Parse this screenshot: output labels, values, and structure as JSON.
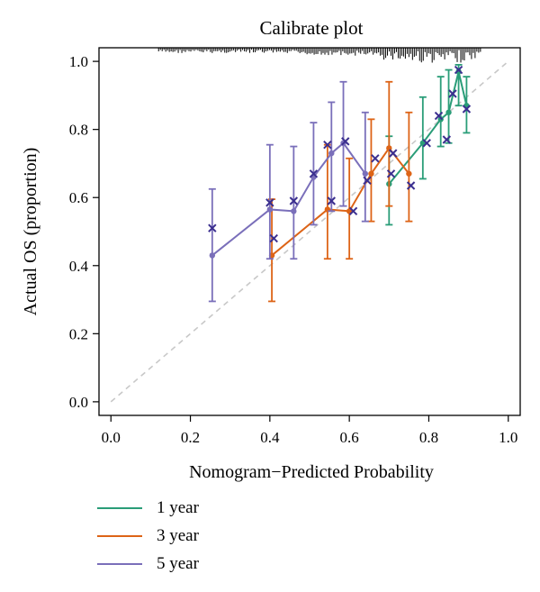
{
  "chart_data": {
    "type": "scatter",
    "title": "Calibrate plot",
    "xlabel": "Nomogram−Predicted Probability",
    "ylabel": "Actual OS (proportion)",
    "xlim": [
      -0.03,
      1.03
    ],
    "ylim": [
      -0.04,
      1.04
    ],
    "x_ticks": [
      "0.0",
      "0.2",
      "0.4",
      "0.6",
      "0.8",
      "1.0"
    ],
    "y_ticks": [
      "0.0",
      "0.2",
      "0.4",
      "0.6",
      "0.8",
      "1.0"
    ],
    "reference_line": {
      "from": [
        0,
        0
      ],
      "to": [
        1,
        1
      ],
      "style": "dashed",
      "color": "#c8c8c8"
    },
    "rug_marks": "dense tick marks along top edge near x 0.3-0.92",
    "series": [
      {
        "name": "1 year",
        "color": "#2a9d78",
        "points": [
          {
            "x": 0.7,
            "y": 0.64,
            "lo": 0.52,
            "hi": 0.78
          },
          {
            "x": 0.785,
            "y": 0.76,
            "lo": 0.655,
            "hi": 0.895
          },
          {
            "x": 0.83,
            "y": 0.83,
            "lo": 0.75,
            "hi": 0.955
          },
          {
            "x": 0.85,
            "y": 0.85,
            "lo": 0.76,
            "hi": 0.975
          },
          {
            "x": 0.875,
            "y": 0.97,
            "lo": 0.87,
            "hi": 0.99
          },
          {
            "x": 0.895,
            "y": 0.87,
            "lo": 0.79,
            "hi": 0.955
          }
        ]
      },
      {
        "name": "3 year",
        "color": "#dd6417",
        "points": [
          {
            "x": 0.405,
            "y": 0.43,
            "lo": 0.295,
            "hi": 0.595
          },
          {
            "x": 0.545,
            "y": 0.565,
            "lo": 0.42,
            "hi": 0.755
          },
          {
            "x": 0.6,
            "y": 0.56,
            "lo": 0.42,
            "hi": 0.715
          },
          {
            "x": 0.655,
            "y": 0.67,
            "lo": 0.53,
            "hi": 0.83
          },
          {
            "x": 0.7,
            "y": 0.745,
            "lo": 0.575,
            "hi": 0.94
          },
          {
            "x": 0.75,
            "y": 0.67,
            "lo": 0.53,
            "hi": 0.85
          }
        ]
      },
      {
        "name": "5 year",
        "color": "#7a6fba",
        "points": [
          {
            "x": 0.255,
            "y": 0.43,
            "lo": 0.295,
            "hi": 0.625
          },
          {
            "x": 0.4,
            "y": 0.565,
            "lo": 0.42,
            "hi": 0.755
          },
          {
            "x": 0.46,
            "y": 0.56,
            "lo": 0.42,
            "hi": 0.75
          },
          {
            "x": 0.51,
            "y": 0.66,
            "lo": 0.52,
            "hi": 0.82
          },
          {
            "x": 0.555,
            "y": 0.73,
            "lo": 0.56,
            "hi": 0.88
          },
          {
            "x": 0.585,
            "y": 0.76,
            "lo": 0.575,
            "hi": 0.94
          },
          {
            "x": 0.64,
            "y": 0.67,
            "lo": 0.53,
            "hi": 0.85
          }
        ]
      }
    ],
    "cross_markers": {
      "color": "#3b2f8f",
      "points": [
        [
          0.255,
          0.51
        ],
        [
          0.4,
          0.585
        ],
        [
          0.41,
          0.48
        ],
        [
          0.46,
          0.59
        ],
        [
          0.51,
          0.67
        ],
        [
          0.545,
          0.755
        ],
        [
          0.555,
          0.59
        ],
        [
          0.59,
          0.765
        ],
        [
          0.61,
          0.56
        ],
        [
          0.645,
          0.65
        ],
        [
          0.665,
          0.715
        ],
        [
          0.705,
          0.67
        ],
        [
          0.71,
          0.73
        ],
        [
          0.755,
          0.635
        ],
        [
          0.795,
          0.76
        ],
        [
          0.825,
          0.84
        ],
        [
          0.845,
          0.77
        ],
        [
          0.86,
          0.905
        ],
        [
          0.875,
          0.975
        ],
        [
          0.895,
          0.86
        ]
      ]
    },
    "legend": {
      "placement": "bottom-left"
    }
  }
}
